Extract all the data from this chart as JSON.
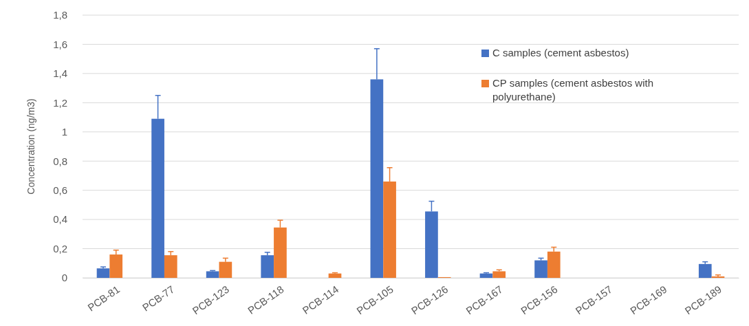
{
  "chart_data": {
    "type": "bar",
    "ylabel": "Concentration (ng/m3)",
    "categories": [
      "PCB-81",
      "PCB-77",
      "PCB-123",
      "PCB-118",
      "PCB-114",
      "PCB-105",
      "PCB-126",
      "PCB-167",
      "PCB-156",
      "PCB-157",
      "PCB-169",
      "PCB-189"
    ],
    "series": [
      {
        "name": "C samples (cement asbestos)",
        "color": "#4472c4",
        "values": [
          0.065,
          1.09,
          0.045,
          0.155,
          0,
          1.36,
          0.455,
          0.03,
          0.12,
          0,
          0,
          0.095
        ],
        "errors": [
          [
            0.065,
            0.075
          ],
          [
            1.09,
            1.25
          ],
          [
            0.045,
            0.05
          ],
          [
            0.155,
            0.175
          ],
          null,
          [
            1.36,
            1.57
          ],
          [
            0.455,
            0.525
          ],
          [
            0.03,
            0.035
          ],
          [
            0.12,
            0.135
          ],
          null,
          null,
          [
            0.095,
            0.11
          ]
        ]
      },
      {
        "name": "CP samples (cement asbestos with polyurethane)",
        "color": "#ed7d31",
        "values": [
          0.16,
          0.155,
          0.11,
          0.345,
          0.03,
          0.66,
          0.005,
          0.045,
          0.18,
          0,
          0,
          0.01
        ],
        "errors": [
          [
            0.16,
            0.19
          ],
          [
            0.155,
            0.18
          ],
          [
            0.11,
            0.135
          ],
          [
            0.345,
            0.395
          ],
          [
            0.03,
            0.035
          ],
          [
            0.66,
            0.755
          ],
          null,
          [
            0.045,
            0.055
          ],
          [
            0.18,
            0.21
          ],
          null,
          null,
          [
            0.01,
            0.02
          ]
        ]
      }
    ],
    "ylim": [
      0,
      1.8
    ],
    "yticks": [
      0,
      {
        "value": 0.2,
        "label": "0,2"
      },
      {
        "value": 0.4,
        "label": "0,4"
      },
      {
        "value": 0.6,
        "label": "0,6"
      },
      {
        "value": 0.8,
        "label": "0,8"
      },
      1,
      {
        "value": 1.2,
        "label": "1,2"
      },
      {
        "value": 1.4,
        "label": "1,4"
      },
      {
        "value": 1.6,
        "label": "1,6"
      },
      {
        "value": 1.8,
        "label": "1,8"
      }
    ],
    "grid": "y",
    "legend": "top right"
  }
}
